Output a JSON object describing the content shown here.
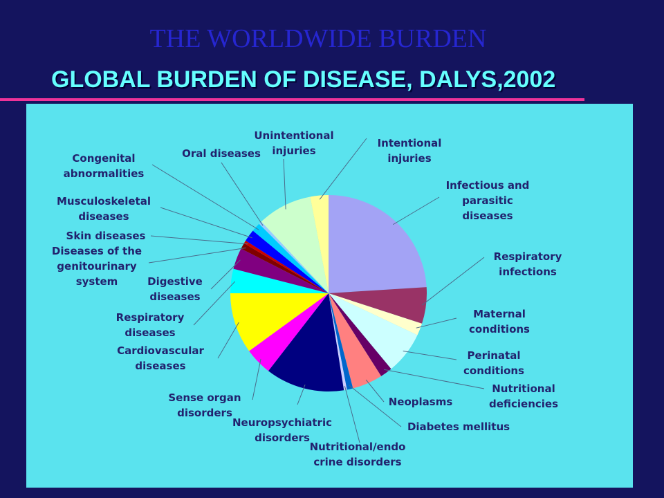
{
  "slide_title": "THE WORLDWIDE BURDEN",
  "chart_data": {
    "type": "pie",
    "title": "GLOBAL BURDEN OF DISEASE, DALYS,2002",
    "categories": [
      "Infectious and parasitic diseases",
      "Respiratory infections",
      "Maternal conditions",
      "Perinatal conditions",
      "Nutritional deficiencies",
      "Neoplasms",
      "Diabetes mellitus",
      "Nutritional/endo crine disorders",
      "Neuropsychiatric disorders",
      "Sense organ disorders",
      "Cardiovascular diseases",
      "Respiratory diseases",
      "Digestive diseases",
      "Diseases of the genitourinary system",
      "Skin diseases",
      "Musculoskeletal diseases",
      "Congenital abnormalities",
      "Oral diseases",
      "Unintentional injuries",
      "Intentional injuries"
    ],
    "values": [
      24,
      6,
      2,
      7,
      2,
      5,
      1,
      0.5,
      13,
      4.5,
      10,
      4,
      3.5,
      1,
      0.5,
      2,
      1.5,
      0.5,
      9,
      3
    ],
    "colors": [
      "#a3a3f5",
      "#993366",
      "#ffffcc",
      "#ccffff",
      "#660066",
      "#ff8080",
      "#0066cc",
      "#ccccff",
      "#000080",
      "#ff00ff",
      "#ffff00",
      "#00ffff",
      "#800080",
      "#800000",
      "#cc0000",
      "#0000ff",
      "#00ccff",
      "#99ccff",
      "#ccffcc",
      "#ffff99"
    ]
  }
}
